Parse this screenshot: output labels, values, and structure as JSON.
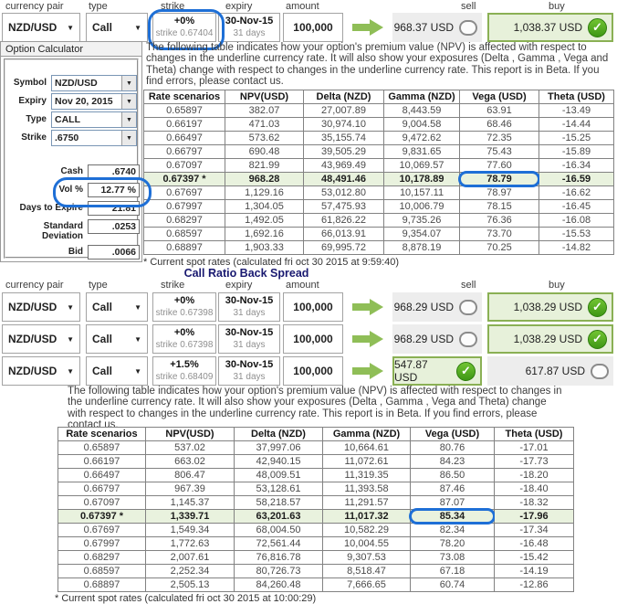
{
  "column_headers": [
    "currency pair",
    "type",
    "strike",
    "expiry",
    "amount",
    "sell",
    "buy"
  ],
  "paragraph": "The following table indicates how your option's premium value (NPV) is affected with respect to changes in the underline currency rate. It will also show your exposures (Delta , Gamma , Vega and Theta) change with respect to changes in the underline currency rate. This report is in Beta. If you find errors, please contact us.",
  "trade_rows_top": [
    {
      "currency_pair": "NZD/USD",
      "type": "Call",
      "strike_pct": "+0%",
      "strike_sub": "strike 0.67404",
      "expiry": "30-Nov-15",
      "expiry_sub": "31 days",
      "amount": "100,000",
      "sell": "968.37 USD",
      "buy": "1,038.37 USD",
      "selected": "buy",
      "strike_annotated": true
    }
  ],
  "spread": {
    "title": "Call Ratio Back Spread"
  },
  "trade_rows_spread": [
    {
      "currency_pair": "NZD/USD",
      "type": "Call",
      "strike_pct": "+0%",
      "strike_sub": "strike 0.67398",
      "expiry": "30-Nov-15",
      "expiry_sub": "31 days",
      "amount": "100,000",
      "sell": "968.29 USD",
      "buy": "1,038.29 USD",
      "selected": "buy",
      "strike_annotated": false
    },
    {
      "currency_pair": "NZD/USD",
      "type": "Call",
      "strike_pct": "+0%",
      "strike_sub": "strike 0.67398",
      "expiry": "30-Nov-15",
      "expiry_sub": "31 days",
      "amount": "100,000",
      "sell": "968.29 USD",
      "buy": "1,038.29 USD",
      "selected": "buy",
      "strike_annotated": false
    },
    {
      "currency_pair": "NZD/USD",
      "type": "Call",
      "strike_pct": "+1.5%",
      "strike_sub": "strike 0.68409",
      "expiry": "30-Nov-15",
      "expiry_sub": "31 days",
      "amount": "100,000",
      "sell": "547.87 USD",
      "buy": "617.87 USD",
      "selected": "sell",
      "strike_annotated": false
    }
  ],
  "calculator": {
    "title": "Option Calculator",
    "dropdown_fields": [
      {
        "label": "Symbol",
        "value": "NZD/USD"
      },
      {
        "label": "Expiry",
        "value": "Nov 20, 2015"
      },
      {
        "label": "Type",
        "value": "CALL"
      },
      {
        "label": "Strike",
        "value": ".6750"
      }
    ],
    "input_fields": [
      {
        "label": "Cash",
        "value": ".6740",
        "annotated": false
      },
      {
        "label": "Vol %",
        "value": "12.77 %",
        "annotated": true
      },
      {
        "label": "Days to Expire",
        "value": "21.81",
        "annotated": false
      },
      {
        "label": "Standard Deviation",
        "value": ".0253",
        "annotated": false
      },
      {
        "label": "Bid",
        "value": ".0066",
        "annotated": false
      }
    ]
  },
  "table1": {
    "headers": [
      "Rate scenarios",
      "NPV(USD)",
      "Delta (NZD)",
      "Gamma (NZD)",
      "Vega (USD)",
      "Theta (USD)"
    ],
    "rows": [
      [
        "0.65897",
        "382.07",
        "27,007.89",
        "8,443.59",
        "63.91",
        "-13.49"
      ],
      [
        "0.66197",
        "471.03",
        "30,974.10",
        "9,004.58",
        "68.46",
        "-14.44"
      ],
      [
        "0.66497",
        "573.62",
        "35,155.74",
        "9,472.62",
        "72.35",
        "-15.25"
      ],
      [
        "0.66797",
        "690.48",
        "39,505.29",
        "9,831.65",
        "75.43",
        "-15.89"
      ],
      [
        "0.67097",
        "821.99",
        "43,969.49",
        "10,069.57",
        "77.60",
        "-16.34"
      ],
      [
        "0.67397 *",
        "968.28",
        "48,491.46",
        "10,178.89",
        "78.79",
        "-16.59"
      ],
      [
        "0.67697",
        "1,129.16",
        "53,012.80",
        "10,157.11",
        "78.97",
        "-16.62"
      ],
      [
        "0.67997",
        "1,304.05",
        "57,475.93",
        "10,006.79",
        "78.15",
        "-16.45"
      ],
      [
        "0.68297",
        "1,492.05",
        "61,826.22",
        "9,735.26",
        "76.36",
        "-16.08"
      ],
      [
        "0.68597",
        "1,692.16",
        "66,013.91",
        "9,354.07",
        "73.70",
        "-15.53"
      ],
      [
        "0.68897",
        "1,903.33",
        "69,995.72",
        "8,878.19",
        "70.25",
        "-14.82"
      ]
    ],
    "highlight_row": 5,
    "circled_cell": {
      "row": 5,
      "col": 4
    },
    "footnote": "* Current spot rates (calculated fri oct 30 2015 at 9:59:40)"
  },
  "table2": {
    "headers": [
      "Rate scenarios",
      "NPV(USD)",
      "Delta (NZD)",
      "Gamma (NZD)",
      "Vega (USD)",
      "Theta (USD)"
    ],
    "rows": [
      [
        "0.65897",
        "537.02",
        "37,997.06",
        "10,664.61",
        "80.76",
        "-17.01"
      ],
      [
        "0.66197",
        "663.02",
        "42,940.15",
        "11,072.61",
        "84.23",
        "-17.73"
      ],
      [
        "0.66497",
        "806.47",
        "48,009.51",
        "11,319.35",
        "86.50",
        "-18.20"
      ],
      [
        "0.66797",
        "967.39",
        "53,128.61",
        "11,393.58",
        "87.46",
        "-18.40"
      ],
      [
        "0.67097",
        "1,145.37",
        "58,218.57",
        "11,291.57",
        "87.07",
        "-18.32"
      ],
      [
        "0.67397 *",
        "1,339.71",
        "63,201.63",
        "11,017.32",
        "85.34",
        "-17.96"
      ],
      [
        "0.67697",
        "1,549.34",
        "68,004.50",
        "10,582.29",
        "82.34",
        "-17.34"
      ],
      [
        "0.67997",
        "1,772.63",
        "72,561.44",
        "10,004.55",
        "78.20",
        "-16.48"
      ],
      [
        "0.68297",
        "2,007.61",
        "76,816.78",
        "9,307.53",
        "73.08",
        "-15.42"
      ],
      [
        "0.68597",
        "2,252.34",
        "80,726.73",
        "8,518.47",
        "67.18",
        "-14.19"
      ],
      [
        "0.68897",
        "2,505.13",
        "84,260.48",
        "7,666.65",
        "60.74",
        "-12.86"
      ]
    ],
    "highlight_row": 5,
    "circled_cell": {
      "row": 5,
      "col": 4
    },
    "footnote": "* Current spot rates (calculated fri oct 30 2015 at 10:00:29)"
  },
  "colors": {
    "annotation_blue": "#1e6fd6",
    "arrow_green": "#8fbe57",
    "selected_bg": "#e7f1da",
    "selected_border": "#8ab054",
    "highlight_row_bg": "#e9f2de",
    "spread_title_navy": "#191970"
  }
}
